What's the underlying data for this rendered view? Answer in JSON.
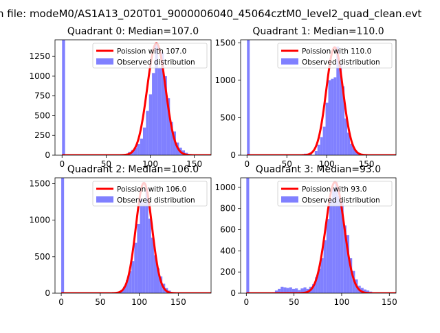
{
  "figure": {
    "suptitle": "n file: modeM0/AS1A13_020T01_9000006040_45064cztM0_level2_quad_clean.evt",
    "colors": {
      "bars": "#8080ff",
      "fit": "#ff0000",
      "axes": "#000000",
      "background": "#ffffff"
    }
  },
  "chart_data": [
    {
      "type": "bar",
      "title": "Quadrant 0: Median=107.0",
      "xlim": [
        -8,
        169
      ],
      "ylim": [
        0,
        1460
      ],
      "xticks": [
        0,
        50,
        100,
        150
      ],
      "yticks": [
        0,
        250,
        500,
        750,
        1000,
        1250
      ],
      "legend": {
        "placement": "top-right",
        "entries": [
          "Poission with 107.0",
          "Observed distribution"
        ]
      },
      "fit": {
        "name": "Poission with 107.0",
        "mean": 107.0,
        "peak": 1415
      },
      "hist": {
        "bin_width": 3.4,
        "bins": [
          {
            "x": 0,
            "v": 1460
          },
          {
            "x": 74.8,
            "v": 40
          },
          {
            "x": 78.2,
            "v": 65
          },
          {
            "x": 81.6,
            "v": 95
          },
          {
            "x": 85.0,
            "v": 140
          },
          {
            "x": 88.4,
            "v": 210
          },
          {
            "x": 91.8,
            "v": 350
          },
          {
            "x": 95.2,
            "v": 560
          },
          {
            "x": 98.6,
            "v": 770
          },
          {
            "x": 102.0,
            "v": 1040
          },
          {
            "x": 105.4,
            "v": 1400
          },
          {
            "x": 108.8,
            "v": 1100
          },
          {
            "x": 112.2,
            "v": 1300
          },
          {
            "x": 115.6,
            "v": 1000
          },
          {
            "x": 119.0,
            "v": 720
          },
          {
            "x": 122.4,
            "v": 420
          },
          {
            "x": 125.8,
            "v": 300
          },
          {
            "x": 129.2,
            "v": 160
          },
          {
            "x": 132.6,
            "v": 95
          },
          {
            "x": 136.0,
            "v": 60
          },
          {
            "x": 139.4,
            "v": 30
          },
          {
            "x": 142.8,
            "v": 15
          }
        ]
      }
    },
    {
      "type": "bar",
      "title": "Quadrant 1: Median=110.0",
      "xlim": [
        -8,
        187
      ],
      "ylim": [
        0,
        1540
      ],
      "xticks": [
        0,
        50,
        100,
        150
      ],
      "yticks": [
        0,
        500,
        1000,
        1500
      ],
      "legend": {
        "placement": "top-right",
        "entries": [
          "Poission with 110.0",
          "Observed distribution"
        ]
      },
      "fit": {
        "name": "Poission with 110.0",
        "mean": 110.0,
        "peak": 1440
      },
      "hist": {
        "bin_width": 3.4,
        "bins": [
          {
            "x": 0,
            "v": 1540
          },
          {
            "x": 71.4,
            "v": 20
          },
          {
            "x": 78.2,
            "v": 30
          },
          {
            "x": 85.0,
            "v": 55
          },
          {
            "x": 88.4,
            "v": 140
          },
          {
            "x": 91.8,
            "v": 240
          },
          {
            "x": 95.2,
            "v": 380
          },
          {
            "x": 98.6,
            "v": 700
          },
          {
            "x": 102.0,
            "v": 1000
          },
          {
            "x": 105.4,
            "v": 1020
          },
          {
            "x": 108.8,
            "v": 1040
          },
          {
            "x": 112.2,
            "v": 1450
          },
          {
            "x": 115.6,
            "v": 1210
          },
          {
            "x": 119.0,
            "v": 920
          },
          {
            "x": 122.4,
            "v": 490
          },
          {
            "x": 125.8,
            "v": 300
          },
          {
            "x": 129.2,
            "v": 150
          },
          {
            "x": 132.6,
            "v": 90
          },
          {
            "x": 136.0,
            "v": 45
          },
          {
            "x": 139.4,
            "v": 20
          }
        ]
      }
    },
    {
      "type": "bar",
      "title": "Quadrant 2: Median=106.0",
      "xlim": [
        -8,
        192
      ],
      "ylim": [
        0,
        1580
      ],
      "xticks": [
        0,
        50,
        100,
        150
      ],
      "yticks": [
        0,
        500,
        1000,
        1500
      ],
      "legend": {
        "placement": "top-right",
        "entries": [
          "Poission with 106.0",
          "Observed distribution"
        ]
      },
      "fit": {
        "name": "Poission with 106.0",
        "mean": 106.0,
        "peak": 1510
      },
      "hist": {
        "bin_width": 3.6,
        "bins": [
          {
            "x": 0,
            "v": 1580
          },
          {
            "x": 72.0,
            "v": 20
          },
          {
            "x": 75.6,
            "v": 45
          },
          {
            "x": 79.2,
            "v": 90
          },
          {
            "x": 82.8,
            "v": 180
          },
          {
            "x": 86.4,
            "v": 300
          },
          {
            "x": 90.0,
            "v": 440
          },
          {
            "x": 93.6,
            "v": 690
          },
          {
            "x": 97.2,
            "v": 950
          },
          {
            "x": 100.8,
            "v": 1290
          },
          {
            "x": 104.4,
            "v": 1230
          },
          {
            "x": 108.0,
            "v": 1440
          },
          {
            "x": 111.6,
            "v": 1020
          },
          {
            "x": 115.2,
            "v": 760
          },
          {
            "x": 118.8,
            "v": 520
          },
          {
            "x": 122.4,
            "v": 340
          },
          {
            "x": 126.0,
            "v": 230
          },
          {
            "x": 129.6,
            "v": 130
          },
          {
            "x": 133.2,
            "v": 70
          },
          {
            "x": 136.8,
            "v": 35
          },
          {
            "x": 140.4,
            "v": 15
          }
        ]
      }
    },
    {
      "type": "bar",
      "title": "Quadrant 3: Median=93.0",
      "xlim": [
        -6,
        157
      ],
      "ylim": [
        0,
        1090
      ],
      "xticks": [
        0,
        50,
        100,
        150
      ],
      "yticks": [
        0,
        200,
        400,
        600,
        800,
        1000
      ],
      "legend": {
        "placement": "top-right",
        "entries": [
          "Poission with 93.0",
          "Observed distribution"
        ]
      },
      "fit": {
        "name": "Poission with 93.0",
        "mean": 93.0,
        "peak": 1050
      },
      "hist": {
        "bin_width": 3.0,
        "bins": [
          {
            "x": 0,
            "v": 1090
          },
          {
            "x": 27.0,
            "v": 10
          },
          {
            "x": 30.0,
            "v": 25
          },
          {
            "x": 33.0,
            "v": 40
          },
          {
            "x": 36.0,
            "v": 60
          },
          {
            "x": 39.0,
            "v": 55
          },
          {
            "x": 42.0,
            "v": 50
          },
          {
            "x": 45.0,
            "v": 55
          },
          {
            "x": 48.0,
            "v": 40
          },
          {
            "x": 51.0,
            "v": 45
          },
          {
            "x": 54.0,
            "v": 30
          },
          {
            "x": 57.0,
            "v": 45
          },
          {
            "x": 60.0,
            "v": 55
          },
          {
            "x": 63.0,
            "v": 40
          },
          {
            "x": 66.0,
            "v": 60
          },
          {
            "x": 69.0,
            "v": 85
          },
          {
            "x": 72.0,
            "v": 150
          },
          {
            "x": 75.0,
            "v": 230
          },
          {
            "x": 78.0,
            "v": 330
          },
          {
            "x": 81.0,
            "v": 500
          },
          {
            "x": 84.0,
            "v": 700
          },
          {
            "x": 87.0,
            "v": 890
          },
          {
            "x": 90.0,
            "v": 990
          },
          {
            "x": 93.0,
            "v": 1050
          },
          {
            "x": 96.0,
            "v": 920
          },
          {
            "x": 99.0,
            "v": 860
          },
          {
            "x": 102.0,
            "v": 640
          },
          {
            "x": 105.0,
            "v": 550
          },
          {
            "x": 108.0,
            "v": 330
          },
          {
            "x": 111.0,
            "v": 210
          },
          {
            "x": 114.0,
            "v": 130
          },
          {
            "x": 117.0,
            "v": 70
          },
          {
            "x": 120.0,
            "v": 50
          },
          {
            "x": 123.0,
            "v": 35
          },
          {
            "x": 126.0,
            "v": 25
          },
          {
            "x": 129.0,
            "v": 15
          }
        ]
      }
    }
  ]
}
